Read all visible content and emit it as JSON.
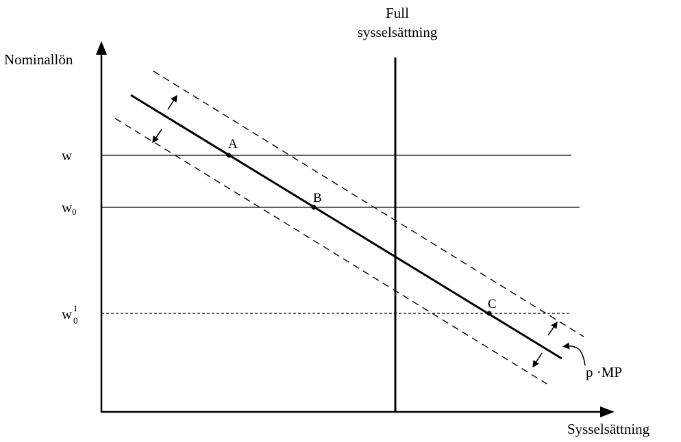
{
  "diagram": {
    "y_axis_label": "Nominallön",
    "x_axis_label": "Sysselsättning",
    "full_employment_label_line1": "Full",
    "full_employment_label_line2": "sysselsättning",
    "wage_labels": {
      "w": "w",
      "w0_base": "w",
      "w0_sub": "0",
      "w01_base": "w",
      "w01_sub": "0",
      "w01_sup": "1"
    },
    "points": {
      "a": "A",
      "b": "B",
      "c": "C"
    },
    "curve_label": "p ·MP"
  }
}
